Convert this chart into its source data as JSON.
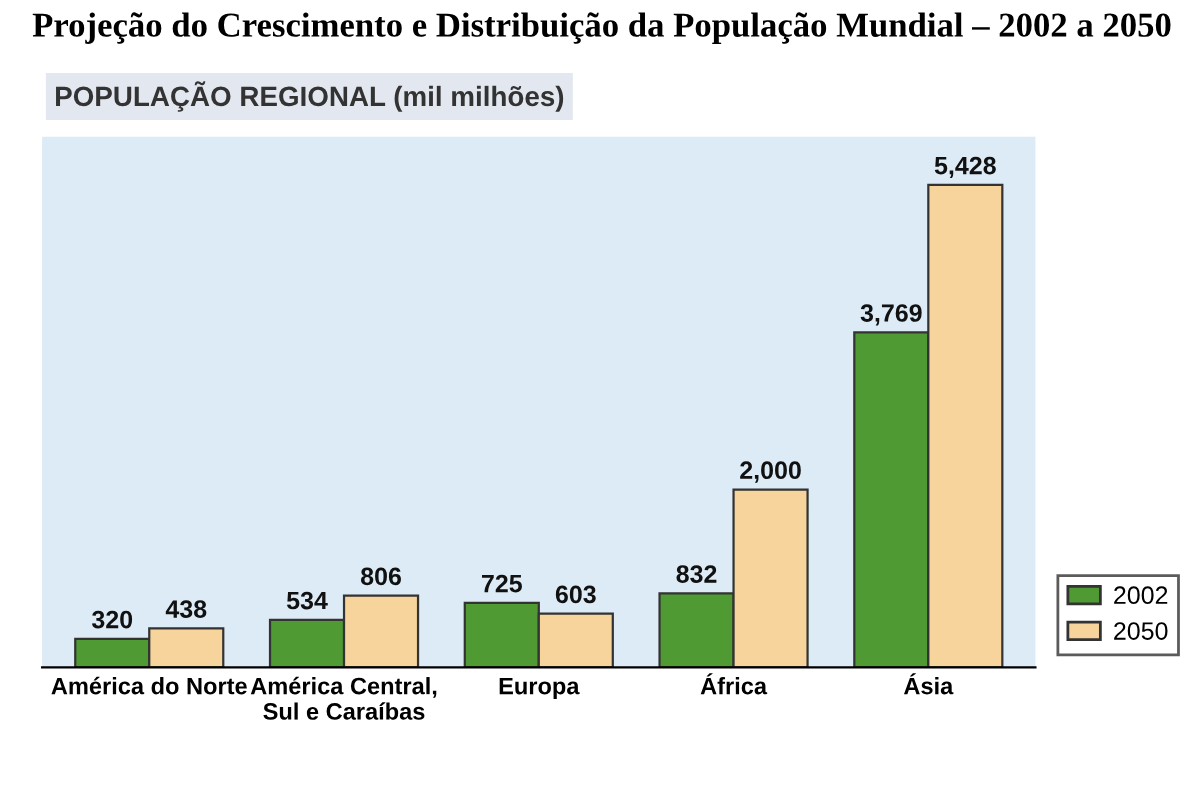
{
  "chart_data": {
    "type": "bar",
    "title": "Projeção do Crescimento e Distribuição da População Mundial – 2002 a 2050",
    "subtitle": "POPULAÇÃO REGIONAL (mil milhões)",
    "categories": [
      "América do Norte",
      "América Central,\nSul e Caraíbas",
      "Europa",
      "África",
      "Ásia"
    ],
    "series": [
      {
        "name": "2002",
        "color": "#4f9a32",
        "values": [
          320,
          534,
          725,
          832,
          3769
        ],
        "value_labels": [
          "320",
          "534",
          "725",
          "832",
          "3,769"
        ]
      },
      {
        "name": "2050",
        "color": "#f7d49b",
        "values": [
          438,
          806,
          603,
          2000,
          5428
        ],
        "value_labels": [
          "438",
          "806",
          "603",
          "2,000",
          "5,428"
        ]
      }
    ],
    "legend": "bottom right",
    "grid": false
  }
}
